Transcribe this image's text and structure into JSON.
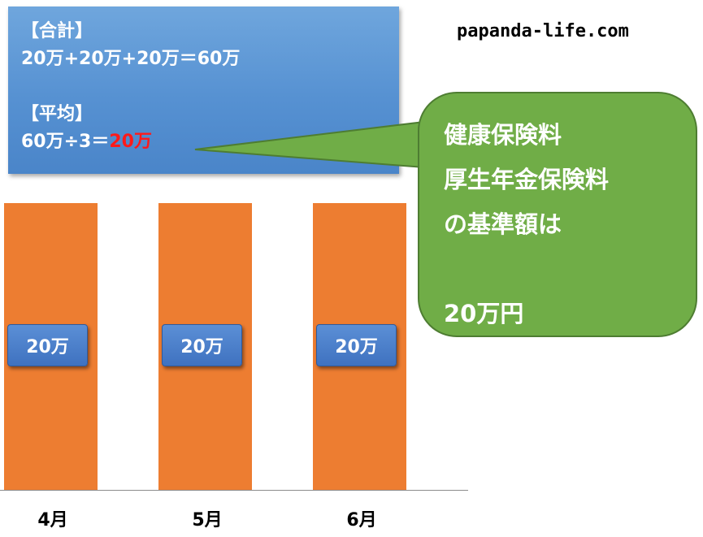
{
  "info": {
    "total_heading": "【合計】",
    "total_formula": "20万+20万+20万＝60万",
    "average_heading": "【平均】",
    "average_formula_prefix": "60万÷3＝",
    "average_result": "20万",
    "result_color": "#ff1a1a"
  },
  "site": "papanda-life.com",
  "callout": {
    "lines": [
      "健康保険料",
      "厚生年金保険料",
      "の基準額は",
      "",
      "20万円"
    ],
    "fill": "#70ad47"
  },
  "chart_data": {
    "type": "bar",
    "categories": [
      "4月",
      "5月",
      "6月"
    ],
    "values": [
      20,
      20,
      20
    ],
    "value_labels": [
      "20万",
      "20万",
      "20万"
    ],
    "bar_color": "#ed7d31",
    "ylim": [
      0,
      20
    ]
  },
  "colors": {
    "box_fill": "#5b9bd5",
    "label_fill": "#4472c4"
  }
}
